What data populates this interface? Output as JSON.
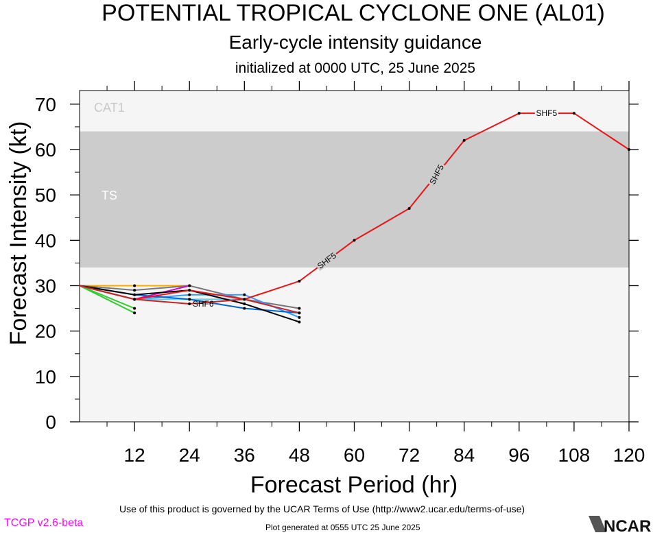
{
  "title": "POTENTIAL TROPICAL CYCLONE ONE (AL01)",
  "subtitle": "Early-cycle intensity guidance",
  "init_text": "initialized at 0000 UTC, 25 June 2025",
  "footer": {
    "version": "TCGP v2.6-beta",
    "notice": "Use of this product is governed by the UCAR Terms of Use (http://www2.ucar.edu/terms-of-use)",
    "generated": "Plot generated at 0555 UTC   25 June 2025",
    "logo_text": "NCAR"
  },
  "colors": {
    "band_ts": "#cccccc",
    "band_light": "#f5f5f5",
    "band_label": "#ffffff",
    "cat1_label": "#c8c8c8",
    "version_text": "#ff00ff"
  },
  "chart_data": {
    "type": "line",
    "xlabel": "Forecast Period (hr)",
    "ylabel": "Forecast Intensity (kt)",
    "xlim": [
      0,
      120
    ],
    "ylim": [
      0,
      73
    ],
    "xticks": [
      12,
      24,
      36,
      48,
      60,
      72,
      84,
      96,
      108,
      120
    ],
    "yticks": [
      0,
      10,
      20,
      30,
      40,
      50,
      60,
      70
    ],
    "bands": [
      {
        "label": "TS",
        "from": 34,
        "to": 64
      },
      {
        "label": "CAT1",
        "from": 64,
        "to": 83
      }
    ],
    "series": [
      {
        "name": "SHF5",
        "color": "#ee1111",
        "x": [
          0,
          12,
          24,
          36,
          48,
          60,
          72,
          84,
          96,
          108,
          120
        ],
        "y": [
          30,
          27,
          29,
          27,
          31,
          40,
          47,
          62,
          68,
          68,
          60
        ]
      },
      {
        "color": "#ffaa00",
        "x": [
          0,
          12,
          24
        ],
        "y": [
          30,
          30,
          30
        ]
      },
      {
        "color": "#777777",
        "x": [
          0,
          12,
          24,
          36,
          48
        ],
        "y": [
          30,
          29,
          30,
          27,
          25
        ]
      },
      {
        "color": "#33cc33",
        "x": [
          0,
          12
        ],
        "y": [
          30,
          25
        ]
      },
      {
        "color": "#33cc33",
        "x": [
          0,
          12
        ],
        "y": [
          30,
          24
        ]
      },
      {
        "color": "#dd00dd",
        "x": [
          0,
          12,
          24
        ],
        "y": [
          30,
          27,
          30
        ]
      },
      {
        "color": "#3399ff",
        "x": [
          0,
          12,
          24,
          36,
          48
        ],
        "y": [
          30,
          27,
          28,
          28,
          23
        ]
      },
      {
        "color": "#66ccee",
        "x": [
          0,
          12,
          24,
          36
        ],
        "y": [
          30,
          27,
          27,
          27
        ]
      },
      {
        "color": "#0066cc",
        "x": [
          0,
          12,
          24,
          36,
          48
        ],
        "y": [
          30,
          28,
          27,
          25,
          24
        ]
      },
      {
        "color": "#000000",
        "x": [
          0,
          12,
          24,
          36,
          48
        ],
        "y": [
          30,
          28,
          29,
          26,
          22
        ]
      },
      {
        "name": "SHF6",
        "color": "#cc2222",
        "x": [
          0,
          12,
          24,
          36,
          48
        ],
        "y": [
          30,
          27,
          26,
          27,
          24
        ]
      }
    ],
    "line_labels": [
      {
        "text": "SHF5",
        "x": 54,
        "y": 35.5
      },
      {
        "text": "SHF5",
        "x": 78,
        "y": 54.5
      },
      {
        "text": "SHF5",
        "x": 102,
        "y": 68
      },
      {
        "text": "SHF6",
        "x": 27,
        "y": 26
      }
    ]
  }
}
